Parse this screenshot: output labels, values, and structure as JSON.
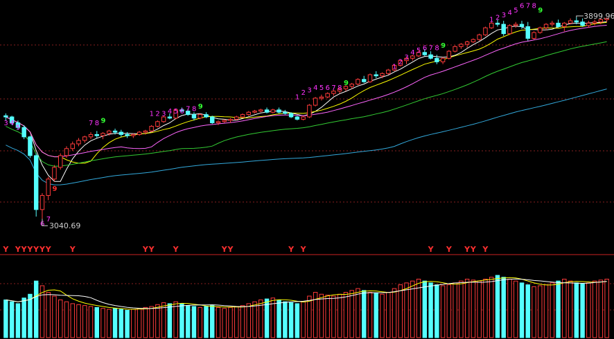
{
  "chart": {
    "high_label": "3899.96",
    "low_label": "3040.69",
    "colors": {
      "background": "#000000",
      "up": "#ff3b3b",
      "down": "#55ffff",
      "ma5": "#ffffff",
      "ma10": "#ffff00",
      "ma20": "#ff66ff",
      "ma30": "#33cc33",
      "ma60": "#33aadd",
      "grid": "#8a1f1f",
      "count_magenta": "#ff33ff",
      "count_green": "#33ff33",
      "signal_red": "#ff3030"
    }
  },
  "chart_data": {
    "type": "candlestick",
    "title": "",
    "ylim": [
      3000,
      3950
    ],
    "markers": {
      "max": 3899.96,
      "min": 3040.69
    },
    "candles": [
      [
        3480,
        3490,
        3460,
        3475
      ],
      [
        3475,
        3480,
        3440,
        3450
      ],
      [
        3450,
        3460,
        3420,
        3430
      ],
      [
        3430,
        3440,
        3380,
        3390
      ],
      [
        3390,
        3395,
        3300,
        3310
      ],
      [
        3310,
        3320,
        3050,
        3080
      ],
      [
        3080,
        3150,
        3040.69,
        3140
      ],
      [
        3140,
        3220,
        3120,
        3210
      ],
      [
        3210,
        3270,
        3200,
        3260
      ],
      [
        3260,
        3320,
        3250,
        3310
      ],
      [
        3310,
        3350,
        3300,
        3340
      ],
      [
        3340,
        3370,
        3330,
        3360
      ],
      [
        3360,
        3385,
        3350,
        3375
      ],
      [
        3375,
        3395,
        3365,
        3390
      ],
      [
        3390,
        3410,
        3380,
        3400
      ],
      [
        3400,
        3415,
        3385,
        3395
      ],
      [
        3395,
        3410,
        3380,
        3405
      ],
      [
        3405,
        3420,
        3395,
        3415
      ],
      [
        3415,
        3425,
        3400,
        3410
      ],
      [
        3410,
        3420,
        3390,
        3400
      ],
      [
        3400,
        3410,
        3385,
        3395
      ],
      [
        3395,
        3405,
        3385,
        3400
      ],
      [
        3400,
        3415,
        3395,
        3410
      ],
      [
        3410,
        3420,
        3400,
        3415
      ],
      [
        3415,
        3440,
        3410,
        3435
      ],
      [
        3435,
        3460,
        3430,
        3455
      ],
      [
        3455,
        3480,
        3450,
        3475
      ],
      [
        3475,
        3490,
        3465,
        3470
      ],
      [
        3470,
        3510,
        3465,
        3505
      ],
      [
        3505,
        3515,
        3495,
        3500
      ],
      [
        3500,
        3510,
        3480,
        3485
      ],
      [
        3485,
        3495,
        3460,
        3470
      ],
      [
        3470,
        3490,
        3465,
        3485
      ],
      [
        3485,
        3495,
        3470,
        3475
      ],
      [
        3475,
        3480,
        3445,
        3450
      ],
      [
        3450,
        3460,
        3440,
        3455
      ],
      [
        3455,
        3465,
        3450,
        3460
      ],
      [
        3460,
        3470,
        3450,
        3465
      ],
      [
        3465,
        3480,
        3460,
        3475
      ],
      [
        3475,
        3490,
        3470,
        3485
      ],
      [
        3485,
        3500,
        3480,
        3495
      ],
      [
        3495,
        3505,
        3490,
        3500
      ],
      [
        3500,
        3510,
        3495,
        3505
      ],
      [
        3505,
        3515,
        3490,
        3495
      ],
      [
        3495,
        3510,
        3490,
        3505
      ],
      [
        3505,
        3515,
        3490,
        3495
      ],
      [
        3495,
        3505,
        3485,
        3490
      ],
      [
        3490,
        3495,
        3470,
        3475
      ],
      [
        3475,
        3480,
        3460,
        3465
      ],
      [
        3465,
        3480,
        3460,
        3475
      ],
      [
        3475,
        3530,
        3470,
        3525
      ],
      [
        3525,
        3560,
        3520,
        3555
      ],
      [
        3555,
        3570,
        3545,
        3560
      ],
      [
        3560,
        3580,
        3555,
        3575
      ],
      [
        3575,
        3590,
        3565,
        3585
      ],
      [
        3585,
        3600,
        3575,
        3595
      ],
      [
        3595,
        3610,
        3585,
        3605
      ],
      [
        3605,
        3620,
        3595,
        3615
      ],
      [
        3615,
        3640,
        3610,
        3635
      ],
      [
        3635,
        3650,
        3620,
        3625
      ],
      [
        3625,
        3660,
        3620,
        3655
      ],
      [
        3655,
        3670,
        3640,
        3650
      ],
      [
        3650,
        3665,
        3640,
        3660
      ],
      [
        3660,
        3680,
        3655,
        3675
      ],
      [
        3675,
        3700,
        3670,
        3695
      ],
      [
        3695,
        3720,
        3690,
        3715
      ],
      [
        3715,
        3730,
        3700,
        3725
      ],
      [
        3725,
        3740,
        3715,
        3735
      ],
      [
        3735,
        3760,
        3730,
        3750
      ],
      [
        3750,
        3765,
        3735,
        3740
      ],
      [
        3740,
        3755,
        3720,
        3725
      ],
      [
        3725,
        3740,
        3700,
        3710
      ],
      [
        3710,
        3730,
        3700,
        3725
      ],
      [
        3725,
        3760,
        3720,
        3755
      ],
      [
        3755,
        3780,
        3750,
        3775
      ],
      [
        3775,
        3790,
        3765,
        3785
      ],
      [
        3785,
        3800,
        3770,
        3795
      ],
      [
        3795,
        3810,
        3790,
        3805
      ],
      [
        3805,
        3830,
        3800,
        3825
      ],
      [
        3825,
        3860,
        3820,
        3855
      ],
      [
        3855,
        3880,
        3850,
        3875
      ],
      [
        3875,
        3890,
        3860,
        3870
      ],
      [
        3870,
        3885,
        3820,
        3830
      ],
      [
        3830,
        3870,
        3825,
        3865
      ],
      [
        3865,
        3880,
        3855,
        3870
      ],
      [
        3870,
        3885,
        3850,
        3860
      ],
      [
        3860,
        3880,
        3800,
        3810
      ],
      [
        3810,
        3840,
        3805,
        3835
      ],
      [
        3835,
        3860,
        3830,
        3855
      ],
      [
        3855,
        3875,
        3845,
        3870
      ],
      [
        3870,
        3885,
        3860,
        3875
      ],
      [
        3875,
        3890,
        3855,
        3860
      ],
      [
        3860,
        3880,
        3840,
        3875
      ],
      [
        3875,
        3895,
        3870,
        3885
      ],
      [
        3885,
        3899.96,
        3870,
        3880
      ],
      [
        3880,
        3895,
        3860,
        3865
      ],
      [
        3865,
        3885,
        3855,
        3875
      ],
      [
        3875,
        3890,
        3865,
        3880
      ],
      [
        3880,
        3895,
        3870,
        3890
      ],
      [
        3890,
        3899,
        3880,
        3895
      ]
    ],
    "volume": [
      40,
      38,
      36,
      42,
      46,
      60,
      55,
      48,
      44,
      40,
      38,
      36,
      35,
      34,
      33,
      32,
      31,
      30,
      31,
      30,
      29,
      30,
      31,
      32,
      33,
      35,
      37,
      36,
      38,
      36,
      34,
      33,
      32,
      33,
      34,
      32,
      31,
      32,
      33,
      34,
      36,
      38,
      40,
      41,
      42,
      40,
      38,
      37,
      36,
      38,
      44,
      48,
      46,
      45,
      44,
      46,
      48,
      50,
      52,
      50,
      48,
      47,
      46,
      48,
      52,
      56,
      58,
      60,
      62,
      60,
      58,
      56,
      55,
      56,
      58,
      60,
      62,
      61,
      60,
      62,
      64,
      66,
      64,
      62,
      60,
      58,
      56,
      54,
      55,
      56,
      58,
      60,
      62,
      60,
      58,
      57,
      58,
      60,
      61,
      62
    ],
    "count_labels": [
      {
        "i": 0,
        "text": "3",
        "color": "magenta",
        "y": 3440
      },
      {
        "i": 1,
        "text": "4",
        "color": "magenta",
        "y": 3440
      },
      {
        "i": 2,
        "text": "5",
        "color": "magenta",
        "y": 3420
      },
      {
        "i": 6,
        "text": "6",
        "color": "magenta",
        "y": 3010
      },
      {
        "i": 7,
        "text": "7",
        "color": "magenta",
        "y": 3030
      },
      {
        "i": 8,
        "text": "9",
        "color": "red",
        "y": 3160
      },
      {
        "i": 14,
        "text": "7",
        "color": "magenta",
        "y": 3440
      },
      {
        "i": 15,
        "text": "8",
        "color": "magenta",
        "y": 3440
      },
      {
        "i": 16,
        "text": "9",
        "color": "green",
        "y": 3450
      },
      {
        "i": 24,
        "text": "1",
        "color": "magenta",
        "y": 3480
      },
      {
        "i": 25,
        "text": "2",
        "color": "magenta",
        "y": 3480
      },
      {
        "i": 26,
        "text": "3",
        "color": "magenta",
        "y": 3480
      },
      {
        "i": 27,
        "text": "4",
        "color": "magenta",
        "y": 3490
      },
      {
        "i": 28,
        "text": "5",
        "color": "magenta",
        "y": 3490
      },
      {
        "i": 29,
        "text": "6",
        "color": "magenta",
        "y": 3490
      },
      {
        "i": 30,
        "text": "7",
        "color": "magenta",
        "y": 3500
      },
      {
        "i": 31,
        "text": "8",
        "color": "magenta",
        "y": 3500
      },
      {
        "i": 32,
        "text": "9",
        "color": "green",
        "y": 3510
      },
      {
        "i": 48,
        "text": "1",
        "color": "magenta",
        "y": 3550
      },
      {
        "i": 49,
        "text": "2",
        "color": "magenta",
        "y": 3570
      },
      {
        "i": 50,
        "text": "3",
        "color": "magenta",
        "y": 3580
      },
      {
        "i": 51,
        "text": "4",
        "color": "magenta",
        "y": 3590
      },
      {
        "i": 52,
        "text": "5",
        "color": "magenta",
        "y": 3590
      },
      {
        "i": 53,
        "text": "6",
        "color": "magenta",
        "y": 3590
      },
      {
        "i": 54,
        "text": "7",
        "color": "magenta",
        "y": 3590
      },
      {
        "i": 55,
        "text": "8",
        "color": "magenta",
        "y": 3590
      },
      {
        "i": 56,
        "text": "9",
        "color": "green",
        "y": 3610
      },
      {
        "i": 64,
        "text": "1",
        "color": "magenta",
        "y": 3680
      },
      {
        "i": 65,
        "text": "2",
        "color": "magenta",
        "y": 3700
      },
      {
        "i": 66,
        "text": "3",
        "color": "magenta",
        "y": 3720
      },
      {
        "i": 67,
        "text": "4",
        "color": "magenta",
        "y": 3740
      },
      {
        "i": 68,
        "text": "5",
        "color": "magenta",
        "y": 3750
      },
      {
        "i": 69,
        "text": "6",
        "color": "magenta",
        "y": 3760
      },
      {
        "i": 70,
        "text": "7",
        "color": "magenta",
        "y": 3760
      },
      {
        "i": 71,
        "text": "8",
        "color": "magenta",
        "y": 3760
      },
      {
        "i": 72,
        "text": "9",
        "color": "green",
        "y": 3770
      },
      {
        "i": 80,
        "text": "1",
        "color": "magenta",
        "y": 3880
      },
      {
        "i": 81,
        "text": "2",
        "color": "magenta",
        "y": 3890
      },
      {
        "i": 82,
        "text": "3",
        "color": "magenta",
        "y": 3900
      },
      {
        "i": 83,
        "text": "4",
        "color": "magenta",
        "y": 3910
      },
      {
        "i": 84,
        "text": "5",
        "color": "magenta",
        "y": 3920
      },
      {
        "i": 85,
        "text": "6",
        "color": "magenta",
        "y": 3940
      },
      {
        "i": 86,
        "text": "7",
        "color": "magenta",
        "y": 3940
      },
      {
        "i": 87,
        "text": "8",
        "color": "magenta",
        "y": 3940
      },
      {
        "i": 88,
        "text": "9",
        "color": "green",
        "y": 3920
      }
    ],
    "signals": [
      0,
      2,
      3,
      4,
      5,
      6,
      7,
      11,
      23,
      24,
      28,
      36,
      37,
      47,
      49,
      70,
      73,
      76,
      77,
      79
    ]
  }
}
